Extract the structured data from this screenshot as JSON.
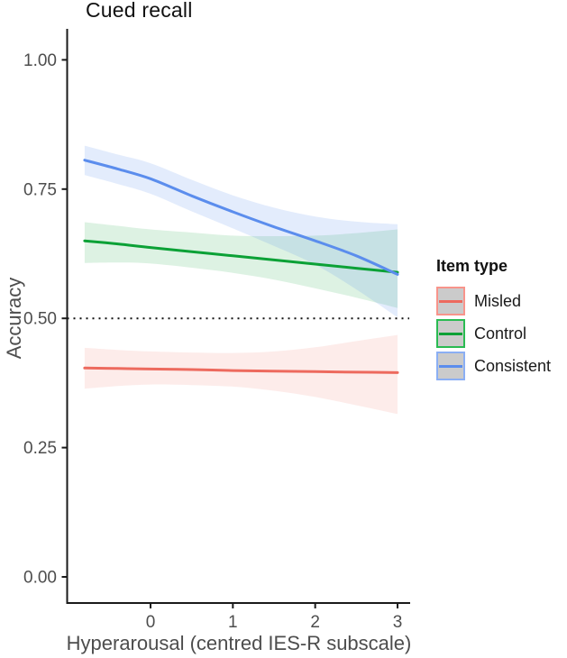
{
  "title": "Cued recall",
  "axes": {
    "x": {
      "label": "Hyperarousal (centred IES-R subscale)",
      "ticks": [
        "0",
        "1",
        "2",
        "3"
      ],
      "tick_values": [
        0,
        1,
        2,
        3
      ]
    },
    "y": {
      "label": "Accuracy",
      "ticks": [
        "1.00",
        "0.75",
        "0.50",
        "0.25",
        "0.00"
      ],
      "tick_values": [
        1.0,
        0.75,
        0.5,
        0.25,
        0.0
      ]
    }
  },
  "legend": {
    "title": "Item type",
    "items": [
      {
        "label": "Misled",
        "color": "#ED6A5E",
        "key_border": "#F8948B",
        "key_fill": "#CBCBCB"
      },
      {
        "label": "Control",
        "color": "#0BA136",
        "key_border": "#2ABB52",
        "key_fill": "#CBCBCB"
      },
      {
        "label": "Consistent",
        "color": "#5B8DED",
        "key_border": "#8BAFF4",
        "key_fill": "#CBCBCB"
      }
    ]
  },
  "chart_data": {
    "type": "line",
    "title": "Cued recall",
    "xlabel": "Hyperarousal (centred IES-R subscale)",
    "ylabel": "Accuracy",
    "xlim": [
      -1.0,
      3.16
    ],
    "ylim": [
      -0.05,
      1.05
    ],
    "grid": false,
    "legend_position": "right",
    "reference_line": {
      "y": 0.5,
      "style": "dotted",
      "color": "#111111"
    },
    "x": [
      -0.8,
      -0.4,
      0,
      0.5,
      1,
      1.5,
      2,
      2.5,
      3
    ],
    "series": [
      {
        "name": "Misled",
        "color": "#ED6A5E",
        "ribbon_opacity": 0.13,
        "values": [
          0.404,
          0.403,
          0.402,
          0.401,
          0.399,
          0.398,
          0.397,
          0.396,
          0.395
        ],
        "ci_upper": [
          0.443,
          0.439,
          0.436,
          0.434,
          0.433,
          0.436,
          0.444,
          0.456,
          0.468
        ],
        "ci_lower": [
          0.364,
          0.369,
          0.372,
          0.371,
          0.368,
          0.36,
          0.348,
          0.332,
          0.315
        ]
      },
      {
        "name": "Control",
        "color": "#0BA136",
        "ribbon_opacity": 0.14,
        "values": [
          0.65,
          0.644,
          0.637,
          0.629,
          0.621,
          0.613,
          0.605,
          0.597,
          0.589
        ],
        "ci_upper": [
          0.686,
          0.679,
          0.672,
          0.666,
          0.66,
          0.659,
          0.66,
          0.665,
          0.672
        ],
        "ci_lower": [
          0.607,
          0.608,
          0.606,
          0.598,
          0.588,
          0.575,
          0.558,
          0.54,
          0.52
        ]
      },
      {
        "name": "Consistent",
        "color": "#5B8DED",
        "ribbon_opacity": 0.17,
        "values": [
          0.806,
          0.789,
          0.77,
          0.737,
          0.706,
          0.677,
          0.65,
          0.621,
          0.585
        ],
        "ci_upper": [
          0.834,
          0.817,
          0.8,
          0.768,
          0.738,
          0.714,
          0.697,
          0.687,
          0.682
        ],
        "ci_lower": [
          0.777,
          0.76,
          0.741,
          0.707,
          0.674,
          0.64,
          0.604,
          0.556,
          0.502
        ]
      }
    ]
  }
}
